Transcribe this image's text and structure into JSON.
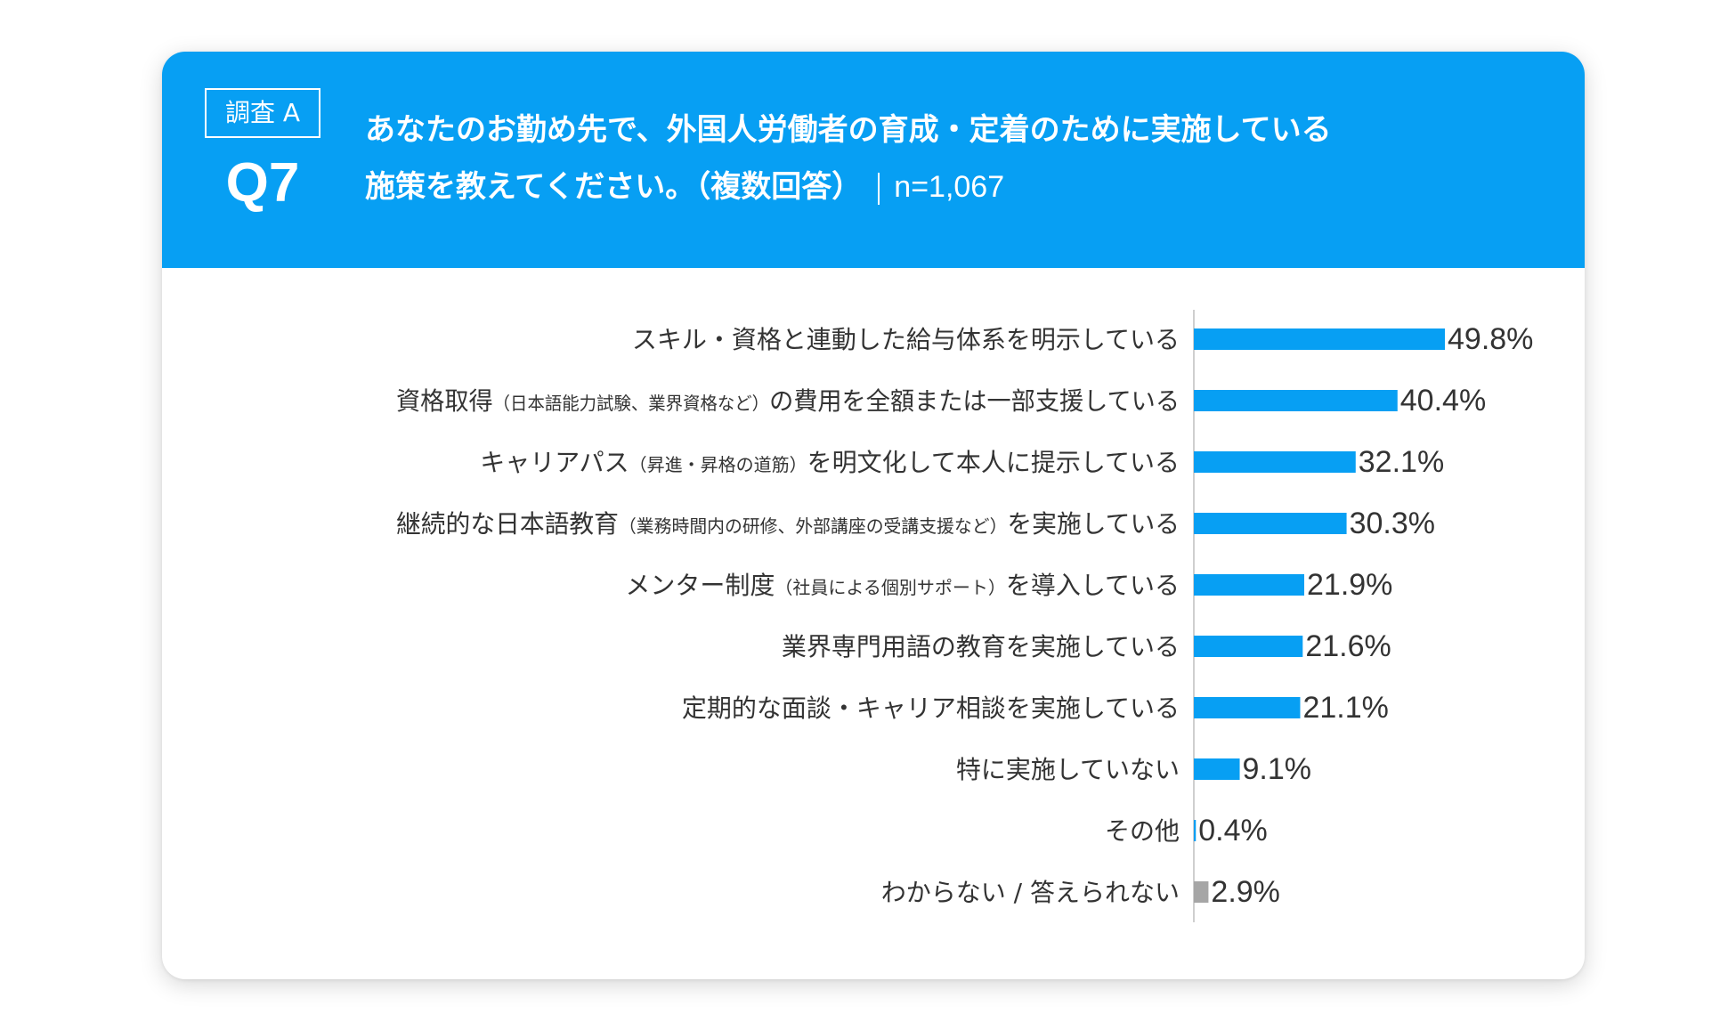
{
  "header": {
    "badge": "調査 A",
    "qnum": "Q7",
    "question_line1": "あなたのお勤め先で、外国人労働者の育成・定着のために実施している",
    "question_line2": "施策を教えてください。（複数回答）",
    "n_label": "n=1,067"
  },
  "colors": {
    "header": "#079ff3",
    "bar": "#079ff3",
    "bar_other": "#a6a6a6",
    "text": "#333333"
  },
  "chart_data": {
    "type": "bar",
    "orientation": "horizontal",
    "xlim": [
      0,
      50
    ],
    "categories": [
      {
        "main": "スキル・資格と連動した給与体系を明示している",
        "note": "",
        "tail": ""
      },
      {
        "main": "資格取得",
        "note": "（日本語能力試験、業界資格など）",
        "tail": "の費用を全額または一部支援している"
      },
      {
        "main": "キャリアパス",
        "note": "（昇進・昇格の道筋）",
        "tail": "を明文化して本人に提示している"
      },
      {
        "main": "継続的な日本語教育",
        "note": "（業務時間内の研修、外部講座の受講支援など）",
        "tail": "を実施している"
      },
      {
        "main": "メンター制度",
        "note": "（社員による個別サポート）",
        "tail": "を導入している"
      },
      {
        "main": "業界専門用語の教育を実施している",
        "note": "",
        "tail": ""
      },
      {
        "main": "定期的な面談・キャリア相談を実施している",
        "note": "",
        "tail": ""
      },
      {
        "main": "特に実施していない",
        "note": "",
        "tail": ""
      },
      {
        "main": "その他",
        "note": "",
        "tail": ""
      },
      {
        "main": "わからない / 答えられない",
        "note": "",
        "tail": ""
      }
    ],
    "values": [
      49.8,
      40.4,
      32.1,
      30.3,
      21.9,
      21.6,
      21.1,
      9.1,
      0.4,
      2.9
    ],
    "value_labels": [
      "49.8%",
      "40.4%",
      "32.1%",
      "30.3%",
      "21.9%",
      "21.6%",
      "21.1%",
      "9.1%",
      "0.4%",
      "2.9%"
    ],
    "highlight_gray_index": 9
  }
}
